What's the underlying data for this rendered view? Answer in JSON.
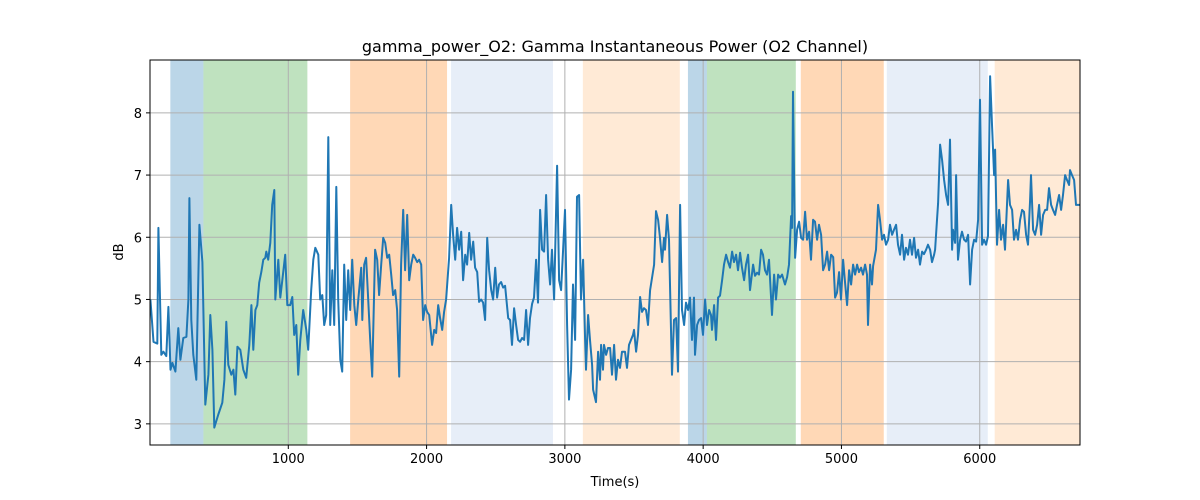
{
  "chart_data": {
    "type": "line",
    "title": "gamma_power_O2: Gamma Instantaneous Power (O2 Channel)",
    "xlabel": "Time(s)",
    "ylabel": "dB",
    "xlim": [
      0,
      6725
    ],
    "ylim": [
      2.66,
      8.85
    ],
    "xticks": [
      1000,
      2000,
      3000,
      4000,
      5000,
      6000
    ],
    "yticks": [
      3,
      4,
      5,
      6,
      7,
      8
    ],
    "grid": true,
    "line_color": "#1f77b4",
    "spans": [
      {
        "start": 147,
        "end": 386,
        "color": "#1f77b4",
        "alpha": 0.3
      },
      {
        "start": 386,
        "end": 1138,
        "color": "#2ca02c",
        "alpha": 0.3
      },
      {
        "start": 1447,
        "end": 2148,
        "color": "#ff7f0e",
        "alpha": 0.3
      },
      {
        "start": 2177,
        "end": 2914,
        "color": "#aec7e8",
        "alpha": 0.3
      },
      {
        "start": 3130,
        "end": 3831,
        "color": "#ffbb78",
        "alpha": 0.3
      },
      {
        "start": 3890,
        "end": 4027,
        "color": "#1f77b4",
        "alpha": 0.3
      },
      {
        "start": 4027,
        "end": 4670,
        "color": "#2ca02c",
        "alpha": 0.3
      },
      {
        "start": 4706,
        "end": 5306,
        "color": "#ff7f0e",
        "alpha": 0.3
      },
      {
        "start": 5328,
        "end": 6058,
        "color": "#aec7e8",
        "alpha": 0.3
      },
      {
        "start": 6108,
        "end": 6725,
        "color": "#ffbb78",
        "alpha": 0.3
      }
    ],
    "series": [
      {
        "name": "gamma_power_O2",
        "x": [
          3,
          25,
          53,
          61,
          82,
          97,
          118,
          133,
          148,
          162,
          184,
          205,
          220,
          241,
          263,
          278,
          285,
          299,
          313,
          335,
          357,
          379,
          400,
          422,
          436,
          451,
          465,
          494,
          523,
          538,
          552,
          566,
          588,
          603,
          617,
          632,
          653,
          675,
          696,
          718,
          733,
          747,
          762,
          776,
          790,
          805,
          819,
          834,
          841,
          855,
          870,
          884,
          899,
          906,
          928,
          942,
          957,
          978,
          993,
          1014,
          1029,
          1043,
          1058,
          1072,
          1087,
          1108,
          1130,
          1144,
          1166,
          1181,
          1195,
          1217,
          1231,
          1246,
          1260,
          1274,
          1289,
          1303,
          1318,
          1332,
          1347,
          1361,
          1376,
          1390,
          1404,
          1419,
          1433,
          1448,
          1462,
          1477,
          1491,
          1506,
          1527,
          1535,
          1549,
          1563,
          1578,
          1592,
          1607,
          1628,
          1643,
          1657,
          1672,
          1686,
          1701,
          1715,
          1730,
          1744,
          1758,
          1773,
          1787,
          1802,
          1816,
          1831,
          1845,
          1860,
          1874,
          1889,
          1903,
          1917,
          1932,
          1946,
          1961,
          1975,
          1990,
          2004,
          2019,
          2040,
          2055,
          2069,
          2084,
          2098,
          2113,
          2127,
          2141,
          2163,
          2178,
          2192,
          2207,
          2221,
          2235,
          2250,
          2264,
          2279,
          2293,
          2308,
          2322,
          2337,
          2351,
          2366,
          2380,
          2394,
          2409,
          2423,
          2438,
          2452,
          2467,
          2481,
          2496,
          2510,
          2524,
          2539,
          2553,
          2568,
          2590,
          2604,
          2618,
          2633,
          2647,
          2662,
          2676,
          2691,
          2705,
          2720,
          2734,
          2748,
          2763,
          2777,
          2792,
          2806,
          2821,
          2835,
          2850,
          2864,
          2879,
          2893,
          2907,
          2922,
          2944,
          2958,
          2973,
          2987,
          3001,
          3016,
          3030,
          3045,
          3059,
          3074,
          3088,
          3103,
          3117,
          3132,
          3146,
          3153,
          3168,
          3182,
          3197,
          3204,
          3225,
          3240,
          3254,
          3262,
          3276,
          3283,
          3298,
          3312,
          3327,
          3341,
          3356,
          3370,
          3384,
          3399,
          3413,
          3435,
          3449,
          3464,
          3478,
          3493,
          3500,
          3515,
          3529,
          3544,
          3558,
          3572,
          3587,
          3601,
          3616,
          3645,
          3659,
          3674,
          3688,
          3703,
          3717,
          3724,
          3739,
          3753,
          3775,
          3789,
          3804,
          3818,
          3833,
          3847,
          3862,
          3876,
          3891,
          3905,
          3919,
          3934,
          3941,
          3956,
          3970,
          3985,
          3999,
          4014,
          4028,
          4043,
          4057,
          4064,
          4079,
          4093,
          4108,
          4122,
          4137,
          4151,
          4166,
          4180,
          4194,
          4209,
          4223,
          4238,
          4252,
          4267,
          4281,
          4296,
          4310,
          4325,
          4339,
          4361,
          4375,
          4390,
          4404,
          4419,
          4433,
          4447,
          4462,
          4476,
          4498,
          4513,
          4527,
          4542,
          4556,
          4571,
          4592,
          4607,
          4621,
          4636,
          4643,
          4650,
          4665,
          4679,
          4694,
          4708,
          4723,
          4737,
          4751,
          4766,
          4780,
          4795,
          4809,
          4824,
          4838,
          4853,
          4867,
          4882,
          4896,
          4911,
          4925,
          4940,
          4954,
          4968,
          4983,
          4997,
          5012,
          5026,
          5041,
          5055,
          5070,
          5084,
          5099,
          5113,
          5127,
          5142,
          5156,
          5171,
          5185,
          5192,
          5207,
          5221,
          5229,
          5250,
          5265,
          5279,
          5294,
          5308,
          5322,
          5337,
          5351,
          5366,
          5380,
          5395,
          5409,
          5424,
          5438,
          5453,
          5467,
          5481,
          5496,
          5510,
          5525,
          5539,
          5554,
          5568,
          5583,
          5597,
          5612,
          5626,
          5641,
          5655,
          5670,
          5677,
          5691,
          5699,
          5713,
          5728,
          5742,
          5757,
          5771,
          5785,
          5800,
          5807,
          5822,
          5829,
          5843,
          5858,
          5872,
          5887,
          5901,
          5916,
          5930,
          5945,
          5959,
          5974,
          5988,
          6002,
          6017,
          6031,
          6046,
          6060,
          6075,
          6089,
          6104,
          6111,
          6125,
          6140,
          6154,
          6169,
          6183,
          6205,
          6219,
          6234,
          6248,
          6263,
          6277,
          6292,
          6306,
          6320,
          6335,
          6349,
          6364,
          6371,
          6386,
          6400,
          6415,
          6429,
          6444,
          6458,
          6473,
          6487,
          6501,
          6516,
          6530,
          6545,
          6559,
          6574,
          6588,
          6602,
          6617,
          6631,
          6646,
          6653,
          6667,
          6682,
          6696,
          6711,
          6725
        ],
        "y": [
          5.0,
          4.32,
          4.29,
          6.15,
          4.11,
          4.16,
          4.09,
          4.88,
          3.87,
          3.98,
          3.84,
          4.54,
          4.03,
          4.38,
          4.4,
          5.0,
          6.63,
          4.67,
          4.11,
          3.71,
          6.2,
          5.6,
          3.31,
          3.79,
          4.75,
          4.19,
          2.94,
          3.15,
          3.34,
          3.71,
          4.64,
          3.95,
          3.79,
          3.87,
          3.47,
          4.24,
          4.19,
          3.87,
          3.74,
          4.27,
          4.91,
          4.19,
          4.83,
          4.91,
          5.27,
          5.44,
          5.64,
          5.67,
          5.77,
          5.64,
          5.91,
          6.52,
          6.76,
          5.0,
          5.64,
          5.03,
          5.31,
          5.72,
          4.91,
          4.91,
          5.04,
          4.43,
          4.59,
          3.79,
          4.35,
          4.83,
          4.51,
          4.19,
          5.15,
          5.64,
          5.83,
          5.72,
          5.0,
          5.07,
          4.59,
          4.75,
          7.61,
          4.59,
          5.47,
          4.59,
          6.81,
          5.0,
          4.03,
          3.84,
          5.56,
          4.67,
          5.47,
          4.83,
          5.64,
          4.91,
          4.59,
          5.0,
          5.51,
          4.67,
          5.56,
          5.67,
          5.0,
          4.35,
          3.76,
          5.8,
          5.64,
          5.07,
          5.56,
          5.99,
          5.91,
          5.67,
          5.72,
          5.4,
          5.07,
          5.15,
          4.83,
          3.76,
          5.56,
          6.44,
          5.47,
          6.36,
          5.31,
          5.56,
          5.72,
          5.67,
          5.6,
          5.64,
          5.56,
          4.67,
          4.91,
          4.8,
          4.75,
          4.27,
          4.51,
          4.46,
          4.91,
          4.7,
          4.51,
          4.8,
          5.0,
          5.67,
          6.52,
          6.04,
          5.64,
          6.15,
          5.8,
          6.09,
          5.31,
          5.72,
          5.56,
          6.07,
          5.64,
          5.93,
          5.51,
          5.44,
          4.96,
          5.0,
          4.95,
          4.67,
          5.99,
          5.47,
          5.15,
          5.0,
          5.51,
          5.03,
          5.24,
          5.28,
          5.19,
          5.22,
          4.7,
          4.67,
          4.27,
          4.86,
          4.59,
          4.35,
          4.32,
          4.38,
          4.35,
          4.83,
          4.27,
          4.7,
          4.93,
          5.03,
          5.64,
          4.95,
          6.44,
          5.8,
          5.77,
          6.68,
          5.64,
          5.24,
          5.8,
          5.0,
          7.15,
          5.31,
          5.15,
          5.8,
          6.44,
          4.59,
          3.39,
          3.87,
          5.24,
          4.35,
          6.65,
          6.68,
          5.0,
          5.64,
          4.35,
          3.87,
          4.75,
          4.35,
          3.95,
          3.55,
          3.35,
          4.16,
          3.71,
          4.27,
          3.87,
          4.27,
          4.11,
          4.22,
          4.22,
          3.79,
          4.27,
          3.71,
          4.03,
          3.9,
          4.16,
          4.16,
          3.9,
          4.27,
          4.35,
          4.43,
          4.51,
          4.16,
          4.43,
          5.04,
          4.8,
          4.86,
          4.83,
          4.59,
          5.15,
          5.56,
          6.42,
          6.28,
          5.99,
          5.6,
          5.99,
          5.8,
          6.36,
          5.96,
          3.79,
          4.67,
          4.7,
          3.84,
          6.52,
          4.83,
          4.59,
          4.95,
          4.83,
          5.03,
          4.35,
          5.03,
          4.11,
          4.59,
          4.67,
          4.7,
          4.43,
          5.0,
          4.59,
          4.83,
          4.75,
          4.51,
          4.91,
          4.35,
          5.03,
          5.06,
          5.31,
          5.56,
          5.72,
          5.6,
          5.51,
          5.77,
          5.6,
          5.72,
          5.47,
          5.75,
          5.51,
          5.31,
          5.56,
          5.72,
          5.15,
          5.56,
          5.38,
          5.43,
          5.4,
          5.8,
          5.72,
          5.47,
          5.4,
          5.64,
          4.75,
          5.4,
          5.0,
          5.4,
          5.35,
          5.4,
          5.24,
          5.36,
          5.56,
          6.34,
          6.15,
          8.34,
          5.67,
          6.12,
          6.25,
          5.99,
          5.96,
          6.41,
          5.96,
          6.09,
          5.64,
          6.28,
          6.25,
          5.96,
          6.2,
          6.04,
          5.47,
          5.56,
          5.77,
          5.47,
          5.72,
          5.68,
          5.03,
          5.11,
          5.44,
          5.0,
          5.64,
          5.28,
          4.91,
          5.47,
          5.24,
          5.56,
          5.4,
          5.56,
          5.44,
          5.51,
          5.4,
          5.56,
          5.4,
          4.59,
          5.56,
          5.24,
          5.54,
          5.8,
          6.52,
          6.28,
          5.96,
          6.04,
          5.88,
          5.96,
          6.2,
          6.04,
          6.12,
          6.2,
          5.88,
          5.72,
          6.04,
          5.64,
          5.83,
          5.72,
          5.96,
          5.72,
          5.99,
          5.67,
          5.8,
          5.56,
          5.77,
          5.73,
          5.8,
          5.88,
          5.8,
          5.6,
          5.72,
          5.8,
          6.28,
          6.55,
          7.49,
          7.24,
          6.92,
          6.68,
          6.52,
          7.57,
          5.8,
          6.12,
          5.91,
          7.0,
          5.64,
          5.96,
          6.09,
          5.96,
          5.93,
          6.04,
          5.24,
          5.8,
          5.96,
          5.93,
          6.28,
          8.21,
          5.88,
          5.96,
          5.88,
          6.02,
          8.59,
          7.81,
          7.0,
          7.41,
          5.88,
          6.44,
          5.96,
          6.2,
          5.8,
          6.92,
          6.52,
          6.44,
          5.96,
          6.12,
          5.96,
          6.28,
          6.44,
          6.41,
          6.04,
          5.88,
          6.6,
          7.0,
          6.12,
          6.04,
          6.2,
          6.52,
          6.04,
          6.36,
          6.44,
          6.44,
          6.79,
          6.52,
          6.44,
          6.36,
          6.52,
          6.68,
          6.44,
          6.68,
          7.0,
          6.92,
          6.84,
          7.08,
          7.0,
          6.92,
          6.52,
          6.52,
          6.52
        ]
      }
    ]
  }
}
